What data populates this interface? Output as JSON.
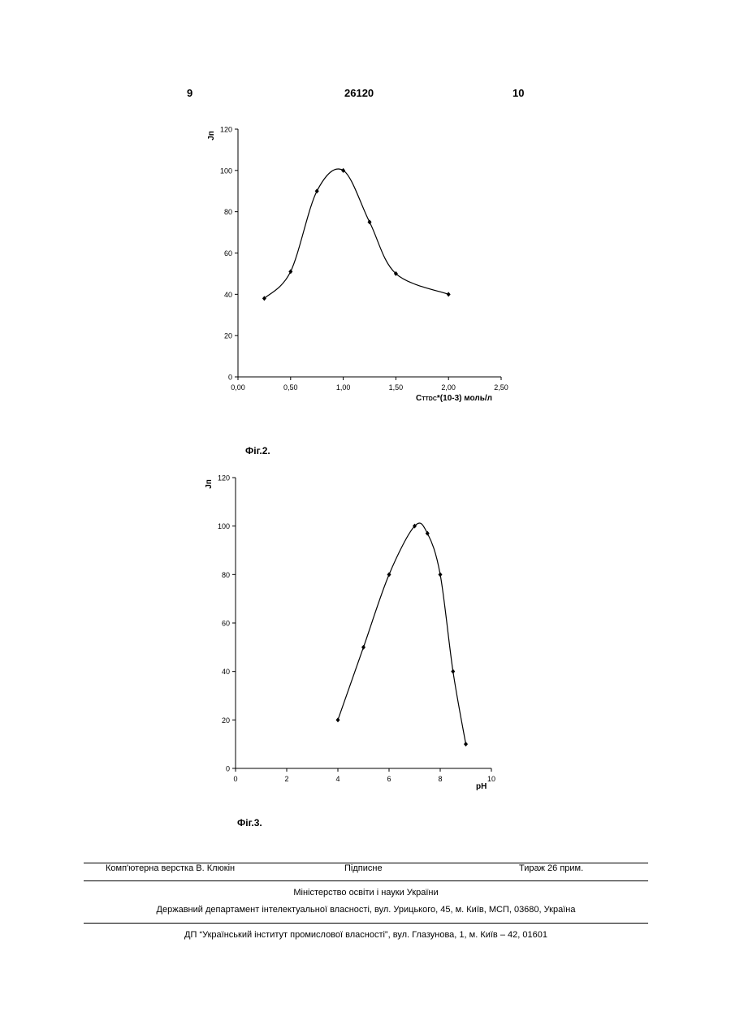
{
  "header": {
    "page_left": "9",
    "patent_number": "26120",
    "page_right": "10"
  },
  "figure2": {
    "caption": "Фіг.2.",
    "chart_data": {
      "type": "line",
      "title": "",
      "ylabel": "Jп",
      "xlabel_main": "C",
      "xlabel_sub": "TTDC",
      "xlabel_rest": "*(10-3) моль/л",
      "xlim": [
        0,
        2.5
      ],
      "ylim": [
        0,
        120
      ],
      "x_ticks": [
        "0,00",
        "0,50",
        "1,00",
        "1,50",
        "2,00",
        "2,50"
      ],
      "y_ticks": [
        "0",
        "20",
        "40",
        "60",
        "80",
        "100",
        "120"
      ],
      "grid": false,
      "series": [
        {
          "x": [
            0.25,
            0.5,
            0.75,
            1.0,
            1.25,
            1.5,
            2.0
          ],
          "y": [
            38,
            51,
            90,
            100,
            75,
            50,
            40
          ]
        }
      ]
    }
  },
  "figure3": {
    "caption": "Фіг.3.",
    "chart_data": {
      "type": "line",
      "title": "",
      "ylabel": "Jп",
      "xlabel": "pH",
      "xlim": [
        0,
        10
      ],
      "ylim": [
        0,
        120
      ],
      "x_ticks": [
        "0",
        "2",
        "4",
        "6",
        "8",
        "10"
      ],
      "y_ticks": [
        "0",
        "20",
        "40",
        "60",
        "80",
        "100",
        "120"
      ],
      "grid": false,
      "series": [
        {
          "x": [
            4,
            5,
            6,
            7,
            7.5,
            8,
            8.5,
            9
          ],
          "y": [
            20,
            50,
            80,
            100,
            97,
            80,
            40,
            10
          ]
        }
      ]
    }
  },
  "footer": {
    "layout": "Комп'ютерна верстка В. Клюкін",
    "signed": "Підписне",
    "circulation": "Тираж 26 прим.",
    "ministry": "Міністерство освіти і науки України",
    "department": "Державний департамент інтелектуальної власності, вул. Урицького, 45, м. Київ, МСП, 03680, Україна",
    "institute": "ДП “Український інститут промислової власності”, вул. Глазунова, 1, м. Київ – 42, 01601"
  }
}
